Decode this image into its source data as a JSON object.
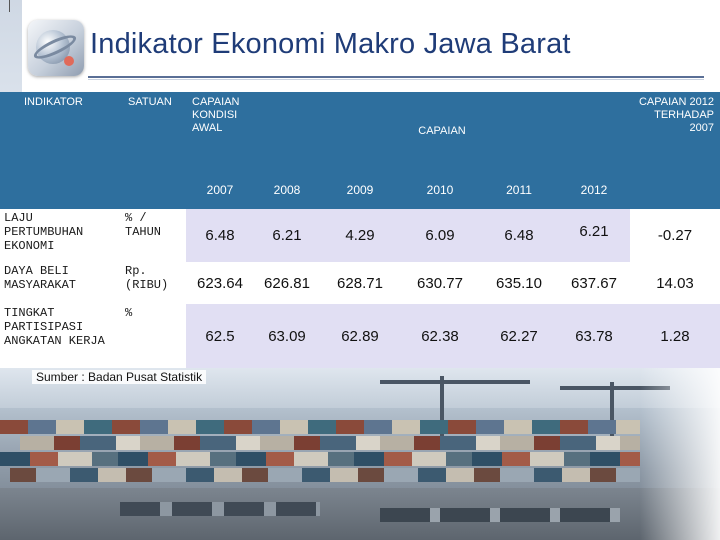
{
  "title": "Indikator Ekonomi Makro Jawa Barat",
  "header": {
    "indikator": "INDIKATOR",
    "satuan": "SATUAN",
    "kondisi_awal": "CAPAIAN KONDISI AWAL",
    "capaian": "CAPAIAN",
    "terhadap": "CAPAIAN 2012 TERHADAP 2007"
  },
  "years": [
    "2007",
    "2008",
    "2009",
    "2010",
    "2011",
    "2012"
  ],
  "rows": [
    {
      "indicator": "LAJU PERTUMBUHAN EKONOMI",
      "unit": "% / TAHUN",
      "values": [
        "6.48",
        "6.21",
        "4.29",
        "6.09",
        "6.48",
        "6.21"
      ],
      "change": "-0.27"
    },
    {
      "indicator": "DAYA BELI MASYARAKAT",
      "unit": "Rp. (RIBU)",
      "values": [
        "623.64",
        "626.81",
        "628.71",
        "630.77",
        "635.10",
        "637.67"
      ],
      "change": "14.03"
    },
    {
      "indicator": "TINGKAT PARTISIPASI ANGKATAN KERJA",
      "unit": "%",
      "values": [
        "62.5",
        "63.09",
        "62.89",
        "62.38",
        "62.27",
        "63.78"
      ],
      "change": "1.28"
    }
  ],
  "source": "Sumber : Badan Pusat Statistik"
}
